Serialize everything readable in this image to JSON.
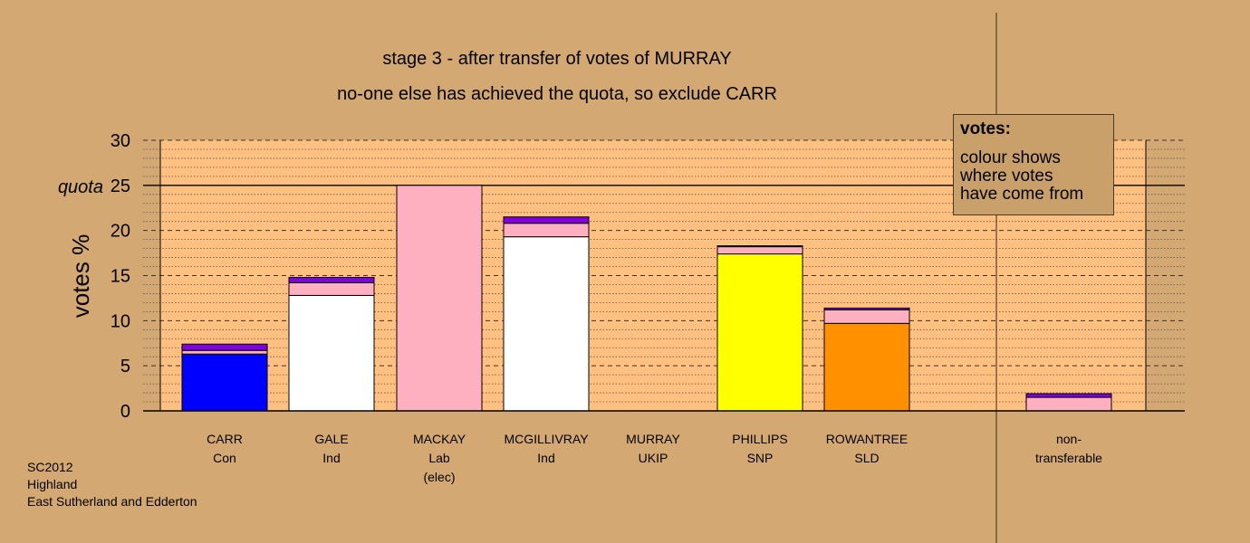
{
  "chart_data": {
    "type": "bar",
    "stacked": true,
    "title": "stage 3 - after transfer of votes of MURRAY",
    "subtitle": "no-one else has achieved the quota, so exclude CARR",
    "ylabel": "votes %",
    "ylim": [
      0,
      30
    ],
    "yticks": [
      "0",
      "5",
      "10",
      "15",
      "20",
      "25",
      "30"
    ],
    "quota_value": 25,
    "quota_label": "quota",
    "grid": true,
    "legend_placement": "top-right",
    "categories": [
      {
        "lines": [
          "CARR",
          "Con"
        ]
      },
      {
        "lines": [
          "GALE",
          "Ind"
        ]
      },
      {
        "lines": [
          "MACKAY",
          "Lab",
          "(elec)"
        ]
      },
      {
        "lines": [
          "MCGILLIVRAY",
          "Ind"
        ]
      },
      {
        "lines": [
          "MURRAY",
          "UKIP"
        ]
      },
      {
        "lines": [
          "PHILLIPS",
          "SNP"
        ]
      },
      {
        "lines": [
          "ROWANTREE",
          "SLD"
        ]
      },
      {
        "lines": [
          "non-",
          "transferable"
        ]
      }
    ],
    "colors": {
      "own": [
        "#0000ff",
        "#ffffff",
        "#ffb0c0",
        "#ffffff",
        "#000000",
        "#ffff00",
        "#ff9000",
        "#ffb0c0"
      ],
      "from_mackay": "#ffb0c0",
      "from_murray": "#8000e0"
    },
    "bars": [
      [
        6.3,
        0.4,
        0.7
      ],
      [
        12.8,
        1.4,
        0.6
      ],
      [
        25.0,
        0,
        0
      ],
      [
        19.3,
        1.5,
        0.7
      ],
      [
        0,
        0,
        0
      ],
      [
        17.4,
        0.8,
        0.1
      ],
      [
        9.7,
        1.5,
        0.2
      ],
      [
        0,
        1.5,
        0.4
      ]
    ]
  },
  "legend": {
    "title": "votes:",
    "lines": [
      "colour shows",
      "where votes",
      "have come from"
    ]
  },
  "footer": {
    "election": "SC2012",
    "council": "Highland",
    "ward": "East Sutherland and Edderton"
  }
}
